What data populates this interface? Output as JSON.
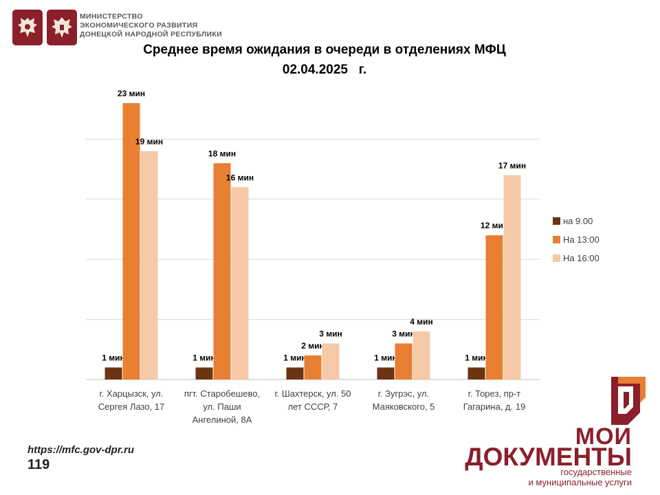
{
  "header": {
    "ministry_lines": [
      "МИНИСТЕРСТВО",
      "ЭКОНОМИЧЕСКОГО РАЗВИТИЯ",
      "ДОНЕЦКОЙ НАРОДНОЙ РЕСПУБЛИКИ"
    ],
    "emblems": [
      "russia-emblem-icon",
      "dpr-emblem-icon"
    ]
  },
  "chart_data": {
    "type": "bar",
    "title_lines": [
      "Среднее время ожидания в очереди в отделениях МФЦ",
      "02.04.2025   г."
    ],
    "categories": [
      [
        "г. Харцызск, ул.",
        "Сергея Лазо, 17"
      ],
      [
        "пгт. Старобешево,",
        "ул. Паши",
        "Ангелиной, 8А"
      ],
      [
        "г. Шахтерск, ул. 50",
        "лет СССР, 7"
      ],
      [
        "г. Зугрэс, ул.",
        "Маяковского, 5"
      ],
      [
        "г. Торез, пр-т",
        "Гагарина, д. 19"
      ]
    ],
    "series": [
      {
        "name": "на 9.00",
        "color": "#6b3512",
        "values": [
          1,
          1,
          1,
          1,
          1
        ],
        "labels": [
          "1 мин",
          "1 мин",
          "1 мин",
          "1 мин",
          "1 мин"
        ]
      },
      {
        "name": "На 13:00",
        "color": "#e87f33",
        "values": [
          23,
          18,
          2,
          3,
          12
        ],
        "labels": [
          "23 мин",
          "18 мин",
          "2 мин",
          "3 мин",
          "12 мин"
        ]
      },
      {
        "name": "На 16:00",
        "color": "#f6c9a7",
        "values": [
          19,
          16,
          3,
          4,
          17
        ],
        "labels": [
          "19 мин",
          "16 мин",
          "3 мин",
          "4 мин",
          "17 мин"
        ]
      }
    ],
    "ylim": [
      0,
      25
    ],
    "gridlines": [
      5,
      10,
      15,
      20
    ],
    "grid": true,
    "legend_position": "right"
  },
  "footer": {
    "url": "https://mfc.gov-dpr.ru",
    "page_number": "119"
  },
  "brand": {
    "line1": "МОИ",
    "line2": "ДОКУМЕНТЫ",
    "tagline_lines": [
      "государственные",
      "и муниципальные услуги"
    ]
  }
}
